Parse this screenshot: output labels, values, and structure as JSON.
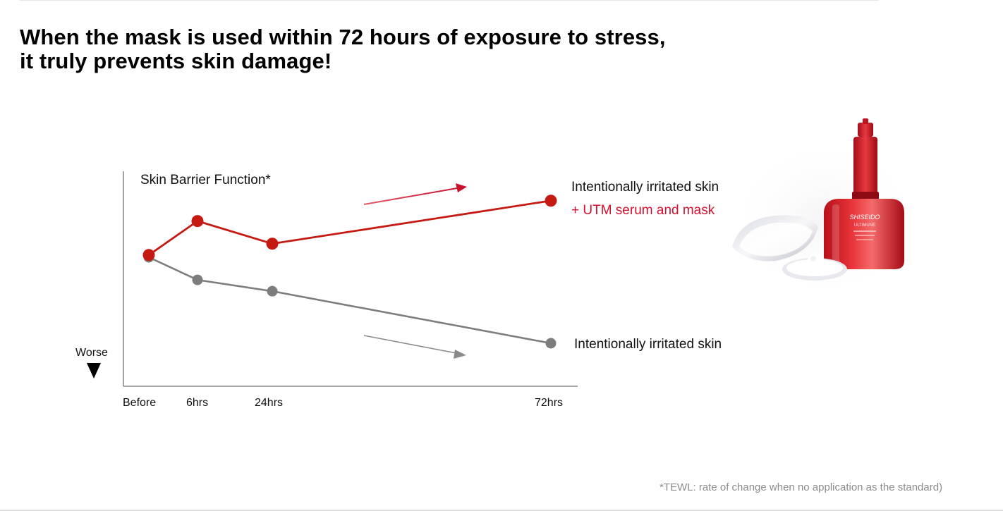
{
  "headline": {
    "line1": "When the mask is used within 72 hours of exposure to stress,",
    "line2": "it truly prevents skin damage!"
  },
  "footnote": "*TEWL: rate of change when no application as the standard)",
  "colors": {
    "treated": "#c41a12",
    "untreated": "#7d7d7d",
    "treated_label": "#d2102e"
  },
  "product": {
    "brand_text": "SHISEIDO",
    "product_text": "ULTIMUNE"
  },
  "chart_data": {
    "type": "line",
    "title": "Skin Barrier Function*",
    "ylabel_bottom": "Worse",
    "categories": [
      "Before",
      "6hrs",
      "24hrs",
      "72hrs"
    ],
    "x": [
      0,
      6,
      24,
      72
    ],
    "series": [
      {
        "name": "Intentionally irritated skin",
        "name_line2": "+ UTM serum and mask",
        "values": [
          0,
          1.5,
          0.5,
          2.4
        ]
      },
      {
        "name": "Intentionally irritated skin",
        "values": [
          -0.1,
          -1.1,
          -1.6,
          -3.9
        ]
      }
    ],
    "ylim": [
      -5.8,
      3.7
    ],
    "grid": false,
    "arrows": [
      "up",
      "down"
    ]
  }
}
